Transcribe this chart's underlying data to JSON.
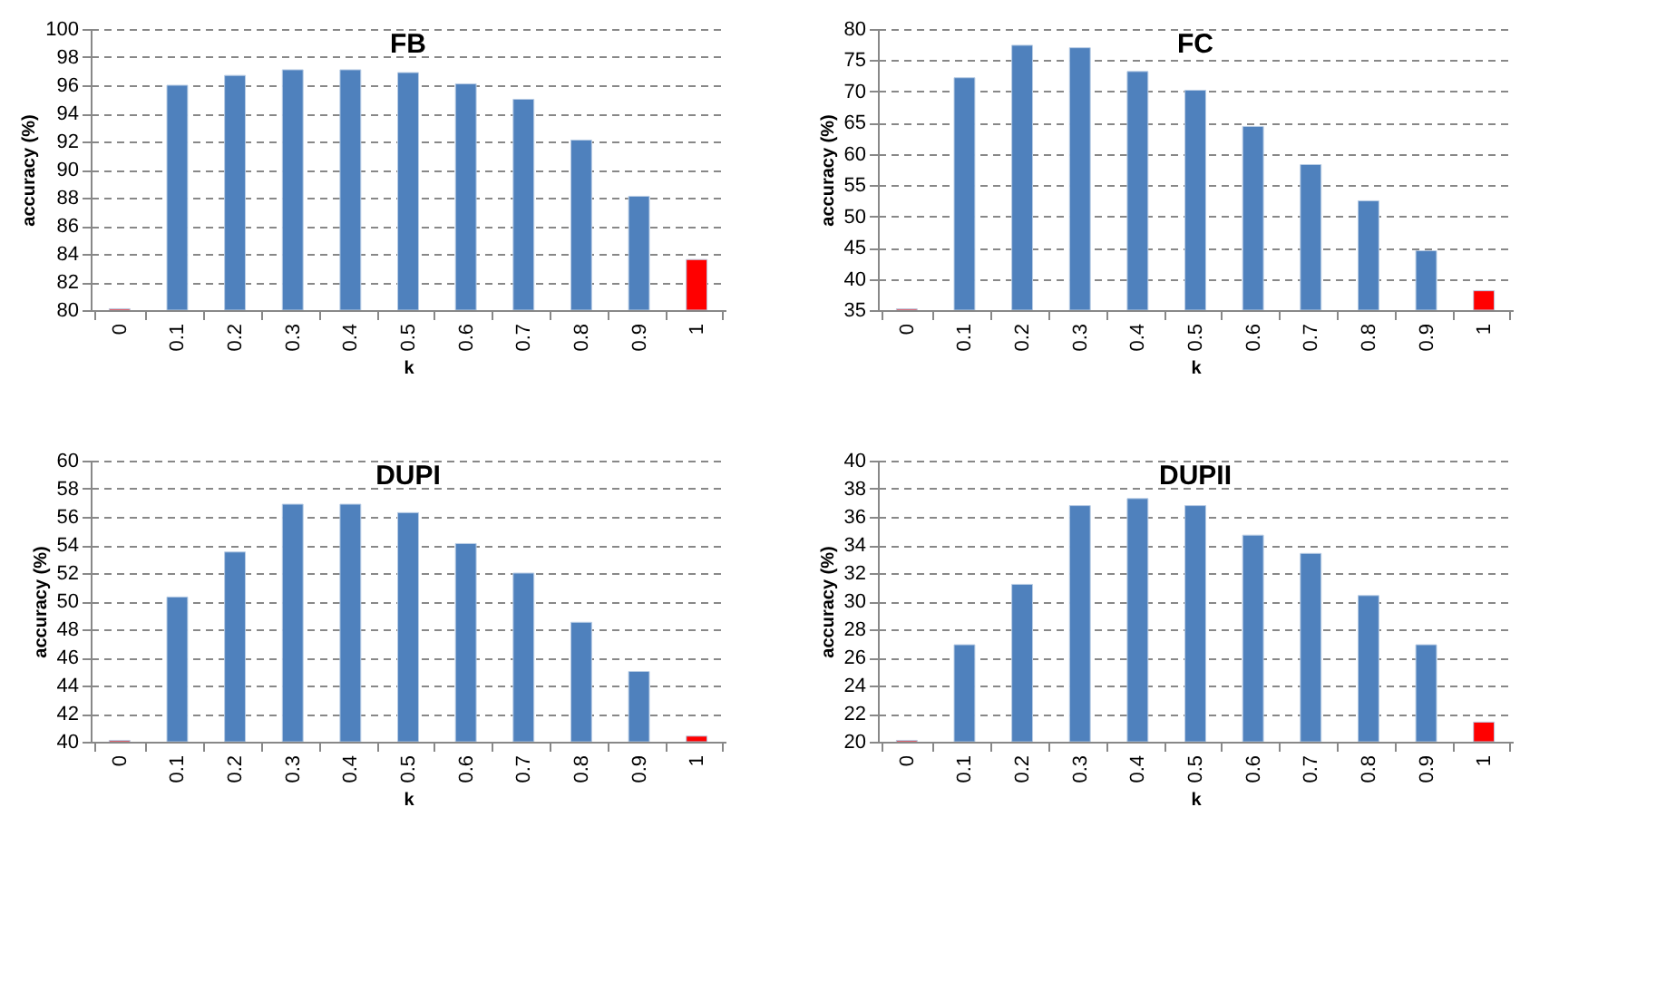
{
  "chart_data": [
    {
      "type": "bar",
      "title": "FB",
      "xlabel": "k",
      "ylabel": "accuracy (%)",
      "categories": [
        "0",
        "0.1",
        "0.2",
        "0.3",
        "0.4",
        "0.5",
        "0.6",
        "0.7",
        "0.8",
        "0.9",
        "1"
      ],
      "values": [
        80.1,
        96,
        96.7,
        97.1,
        97.1,
        96.9,
        96.1,
        95,
        92.1,
        88.1,
        83.6
      ],
      "colors": [
        "#ff0000",
        "#4f81bd",
        "#4f81bd",
        "#4f81bd",
        "#4f81bd",
        "#4f81bd",
        "#4f81bd",
        "#4f81bd",
        "#4f81bd",
        "#4f81bd",
        "#ff0000"
      ],
      "ylim": [
        80,
        100
      ],
      "yticks": [
        80,
        82,
        84,
        86,
        88,
        90,
        92,
        94,
        96,
        98,
        100
      ],
      "grid": "y"
    },
    {
      "type": "bar",
      "title": "FC",
      "xlabel": "k",
      "ylabel": "accuracy (%)",
      "categories": [
        "0",
        "0.1",
        "0.2",
        "0.3",
        "0.4",
        "0.5",
        "0.6",
        "0.7",
        "0.8",
        "0.9",
        "1"
      ],
      "values": [
        35.2,
        72.2,
        77.4,
        77,
        73.2,
        70.2,
        64.4,
        58.3,
        52.5,
        44.5,
        38.1
      ],
      "colors": [
        "#ff0000",
        "#4f81bd",
        "#4f81bd",
        "#4f81bd",
        "#4f81bd",
        "#4f81bd",
        "#4f81bd",
        "#4f81bd",
        "#4f81bd",
        "#4f81bd",
        "#ff0000"
      ],
      "ylim": [
        35,
        80
      ],
      "yticks": [
        35,
        40,
        45,
        50,
        55,
        60,
        65,
        70,
        75,
        80
      ],
      "grid": "y"
    },
    {
      "type": "bar",
      "title": "DUPI",
      "xlabel": "k",
      "ylabel": "accuracy (%)",
      "categories": [
        "0",
        "0.1",
        "0.2",
        "0.3",
        "0.4",
        "0.5",
        "0.6",
        "0.7",
        "0.8",
        "0.9",
        "1"
      ],
      "values": [
        40.1,
        50.3,
        53.5,
        56.9,
        56.9,
        56.3,
        54.1,
        52,
        48.5,
        45,
        40.4
      ],
      "colors": [
        "#ff0000",
        "#4f81bd",
        "#4f81bd",
        "#4f81bd",
        "#4f81bd",
        "#4f81bd",
        "#4f81bd",
        "#4f81bd",
        "#4f81bd",
        "#4f81bd",
        "#ff0000"
      ],
      "ylim": [
        40,
        60
      ],
      "yticks": [
        40,
        42,
        44,
        46,
        48,
        50,
        52,
        54,
        56,
        58,
        60
      ],
      "grid": "y"
    },
    {
      "type": "bar",
      "title": "DUPII",
      "xlabel": "k",
      "ylabel": "accuracy (%)",
      "categories": [
        "0",
        "0.1",
        "0.2",
        "0.3",
        "0.4",
        "0.5",
        "0.6",
        "0.7",
        "0.8",
        "0.9",
        "1"
      ],
      "values": [
        20.1,
        26.9,
        31.2,
        36.8,
        37.3,
        36.8,
        34.7,
        33.4,
        30.4,
        26.9,
        21.4
      ],
      "colors": [
        "#ff0000",
        "#4f81bd",
        "#4f81bd",
        "#4f81bd",
        "#4f81bd",
        "#4f81bd",
        "#4f81bd",
        "#4f81bd",
        "#4f81bd",
        "#4f81bd",
        "#ff0000"
      ],
      "ylim": [
        20,
        40
      ],
      "yticks": [
        20,
        22,
        24,
        26,
        28,
        30,
        32,
        34,
        36,
        38,
        40
      ],
      "grid": "y"
    }
  ]
}
